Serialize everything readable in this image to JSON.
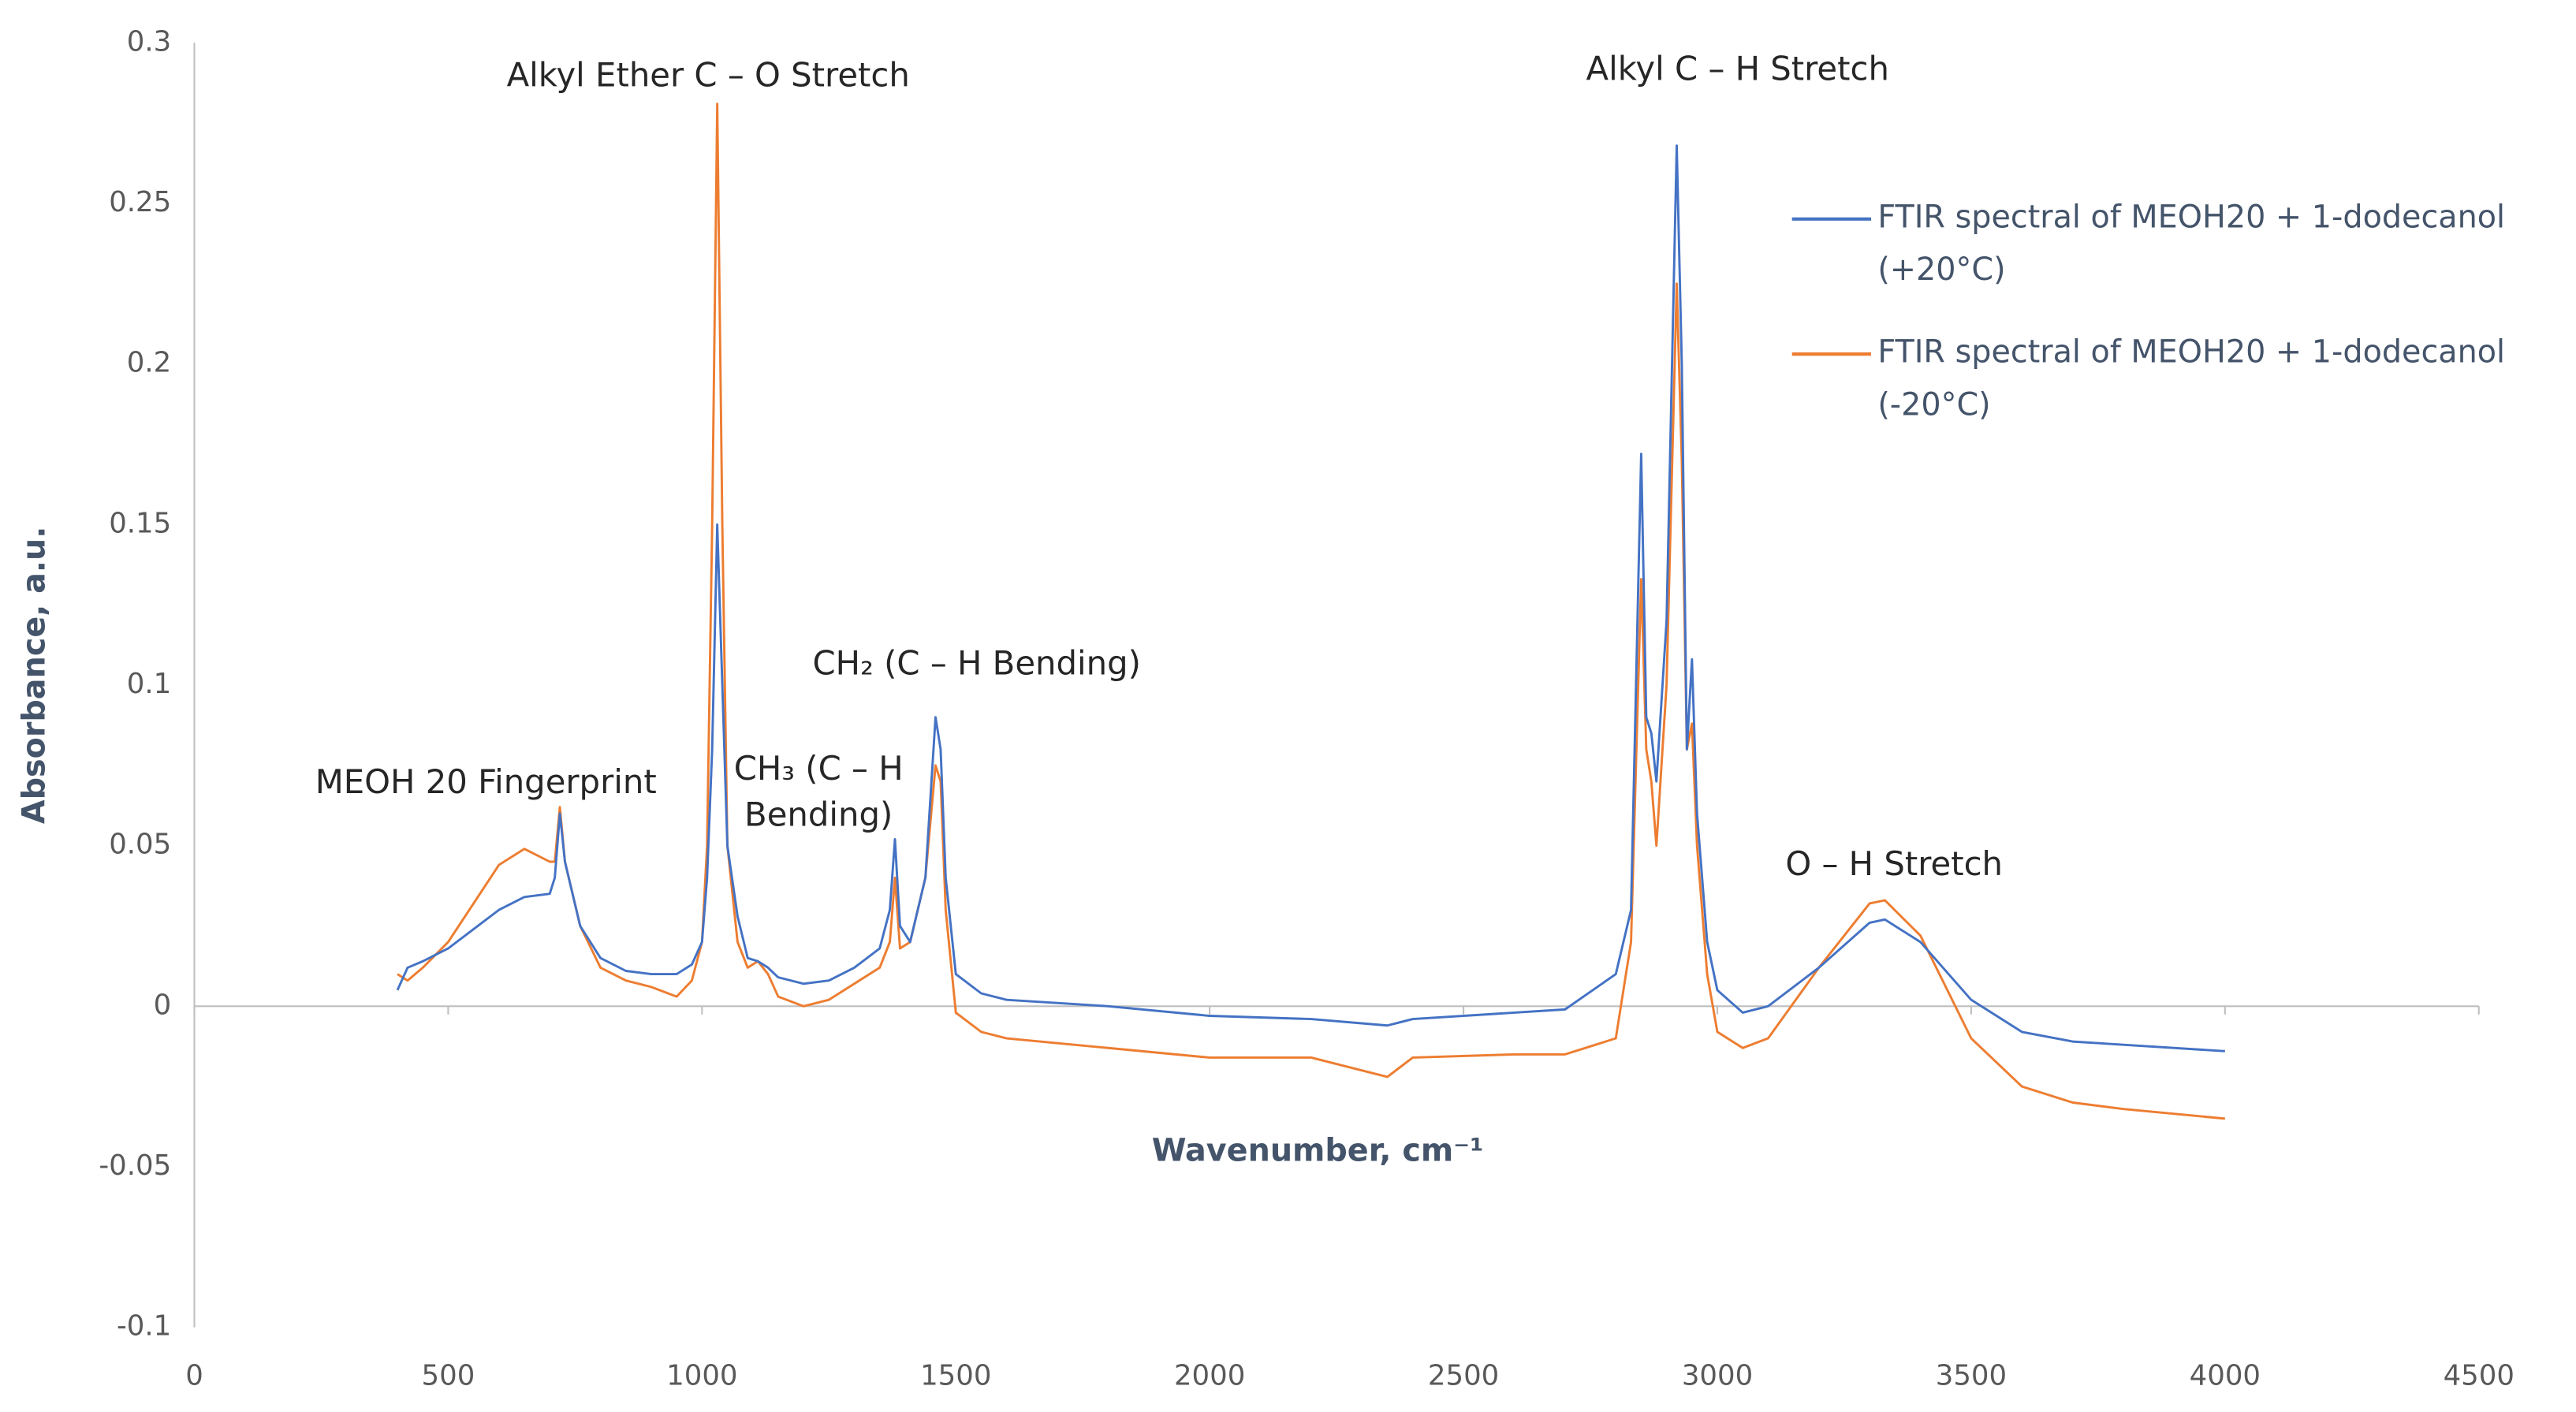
{
  "chart_data": {
    "type": "line",
    "x_label": "Wavenumber, cm⁻¹",
    "y_label": "Absorbance, a.u.",
    "annotations": [
      "Alkyl Ether C – O Stretch",
      "Alkyl C – H Stretch",
      "MEOH 20 Fingerprint",
      "CH₃ (C – H",
      "Bending)",
      "CH₂ (C – H Bending)",
      "O – H Stretch"
    ],
    "x": [
      400,
      420,
      450,
      500,
      550,
      600,
      650,
      700,
      710,
      720,
      730,
      760,
      800,
      850,
      900,
      950,
      980,
      1000,
      1010,
      1020,
      1030,
      1040,
      1050,
      1070,
      1090,
      1110,
      1130,
      1150,
      1200,
      1250,
      1300,
      1350,
      1370,
      1380,
      1390,
      1410,
      1440,
      1460,
      1470,
      1480,
      1500,
      1550,
      1600,
      1800,
      2000,
      2200,
      2350,
      2400,
      2600,
      2700,
      2800,
      2830,
      2850,
      2860,
      2870,
      2880,
      2900,
      2920,
      2930,
      2940,
      2950,
      2960,
      2980,
      3000,
      3050,
      3100,
      3200,
      3300,
      3330,
      3400,
      3500,
      3600,
      3700,
      3800,
      4000
    ],
    "series": [
      {
        "name": "FTIR spectral of  MEOH20 + 1-dodecanol (+20°C)",
        "color": "#4472c4",
        "values": [
          0.005,
          0.012,
          0.014,
          0.018,
          0.024,
          0.03,
          0.034,
          0.035,
          0.04,
          0.06,
          0.045,
          0.025,
          0.015,
          0.011,
          0.01,
          0.01,
          0.013,
          0.02,
          0.04,
          0.08,
          0.15,
          0.1,
          0.05,
          0.028,
          0.015,
          0.014,
          0.012,
          0.009,
          0.007,
          0.008,
          0.012,
          0.018,
          0.03,
          0.052,
          0.025,
          0.02,
          0.04,
          0.09,
          0.08,
          0.04,
          0.01,
          0.004,
          0.002,
          0,
          -0.003,
          -0.004,
          -0.006,
          -0.004,
          -0.002,
          -0.001,
          0.01,
          0.03,
          0.172,
          0.09,
          0.085,
          0.07,
          0.12,
          0.268,
          0.2,
          0.08,
          0.108,
          0.06,
          0.02,
          0.005,
          -0.002,
          0,
          0.012,
          0.026,
          0.027,
          0.02,
          0.002,
          -0.008,
          -0.011,
          -0.012,
          -0.014
        ]
      },
      {
        "name": "FTIR spectral of  MEOH20 + 1-dodecanol (-20°C)",
        "color": "#ed7d31",
        "values": [
          0.01,
          0.008,
          0.012,
          0.02,
          0.032,
          0.044,
          0.049,
          0.045,
          0.045,
          0.062,
          0.045,
          0.025,
          0.012,
          0.008,
          0.006,
          0.003,
          0.008,
          0.02,
          0.05,
          0.15,
          0.281,
          0.15,
          0.05,
          0.02,
          0.012,
          0.014,
          0.01,
          0.003,
          0.0,
          0.002,
          0.007,
          0.012,
          0.02,
          0.04,
          0.018,
          0.02,
          0.04,
          0.075,
          0.07,
          0.03,
          -0.002,
          -0.008,
          -0.01,
          -0.013,
          -0.016,
          -0.016,
          -0.022,
          -0.016,
          -0.015,
          -0.015,
          -0.01,
          0.02,
          0.133,
          0.08,
          0.07,
          0.05,
          0.1,
          0.225,
          0.17,
          0.08,
          0.088,
          0.05,
          0.01,
          -0.008,
          -0.013,
          -0.01,
          0.012,
          0.032,
          0.033,
          0.022,
          -0.01,
          -0.025,
          -0.03,
          -0.032,
          -0.035
        ]
      }
    ],
    "xlim": [
      0,
      4500
    ],
    "xticks": [
      0,
      500,
      1000,
      1500,
      2000,
      2500,
      3000,
      3500,
      4000,
      4500
    ],
    "ylim": [
      -0.1,
      0.3
    ],
    "yticks": [
      0.3,
      0.25,
      0.2,
      0.15,
      0.1,
      0.05,
      0,
      -0.05,
      -0.1
    ],
    "grid": false,
    "legend": "upper right"
  }
}
